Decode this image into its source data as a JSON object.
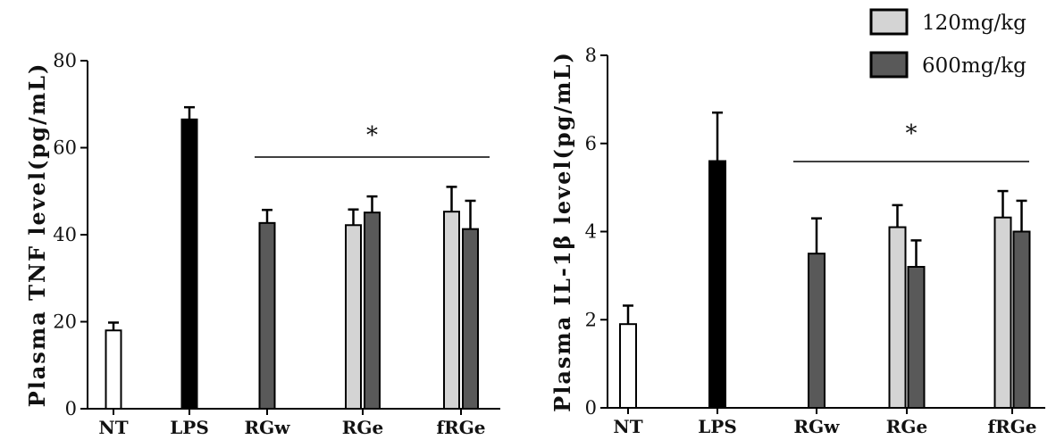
{
  "legend": [
    {
      "label": "120mg/kg",
      "color": "#d4d4d4"
    },
    {
      "label": "600mg/kg",
      "color": "#595959"
    }
  ],
  "colors": {
    "NT": "#ffffff",
    "LPS": "#000000",
    "low": "#d4d4d4",
    "high": "#595959"
  },
  "chart_data": [
    {
      "type": "bar",
      "ylabel": "Plasma TNF level(pg/mL)",
      "ylim": [
        0,
        80
      ],
      "yticks": [
        0,
        20,
        40,
        60,
        80
      ],
      "categories": [
        "NT",
        "LPS",
        "RGw",
        "RGe",
        "fRGe"
      ],
      "series": [
        {
          "category": "NT",
          "group": "control",
          "value": 18,
          "error": 1.8
        },
        {
          "category": "LPS",
          "group": "control",
          "value": 66.5,
          "error": 2.8
        },
        {
          "category": "RGw",
          "name": "600mg/kg",
          "value": 42.7,
          "error": 3
        },
        {
          "category": "RGe",
          "name": "120mg/kg",
          "value": 42.2,
          "error": 3.6
        },
        {
          "category": "RGe",
          "name": "600mg/kg",
          "value": 45.1,
          "error": 3.7
        },
        {
          "category": "fRGe",
          "name": "120mg/kg",
          "value": 45.3,
          "error": 5.7
        },
        {
          "category": "fRGe",
          "name": "600mg/kg",
          "value": 41.3,
          "error": 6.5
        }
      ],
      "annotation": {
        "text": "*",
        "span": [
          "RGw",
          "fRGe"
        ]
      }
    },
    {
      "type": "bar",
      "ylabel": "Plasma IL-1β level(pg/mL)",
      "ylim": [
        0,
        8
      ],
      "yticks": [
        0,
        2,
        4,
        6,
        8
      ],
      "categories": [
        "NT",
        "LPS",
        "RGw",
        "RGe",
        "fRGe"
      ],
      "series": [
        {
          "category": "NT",
          "group": "control",
          "value": 1.9,
          "error": 0.42
        },
        {
          "category": "LPS",
          "group": "control",
          "value": 5.6,
          "error": 1.1
        },
        {
          "category": "RGw",
          "name": "600mg/kg",
          "value": 3.5,
          "error": 0.8
        },
        {
          "category": "RGe",
          "name": "120mg/kg",
          "value": 4.1,
          "error": 0.5
        },
        {
          "category": "RGe",
          "name": "600mg/kg",
          "value": 3.2,
          "error": 0.6
        },
        {
          "category": "fRGe",
          "name": "120mg/kg",
          "value": 4.32,
          "error": 0.6
        },
        {
          "category": "fRGe",
          "name": "600mg/kg",
          "value": 4.0,
          "error": 0.7
        }
      ],
      "annotation": {
        "text": "*",
        "span": [
          "RGw",
          "fRGe"
        ]
      }
    }
  ]
}
